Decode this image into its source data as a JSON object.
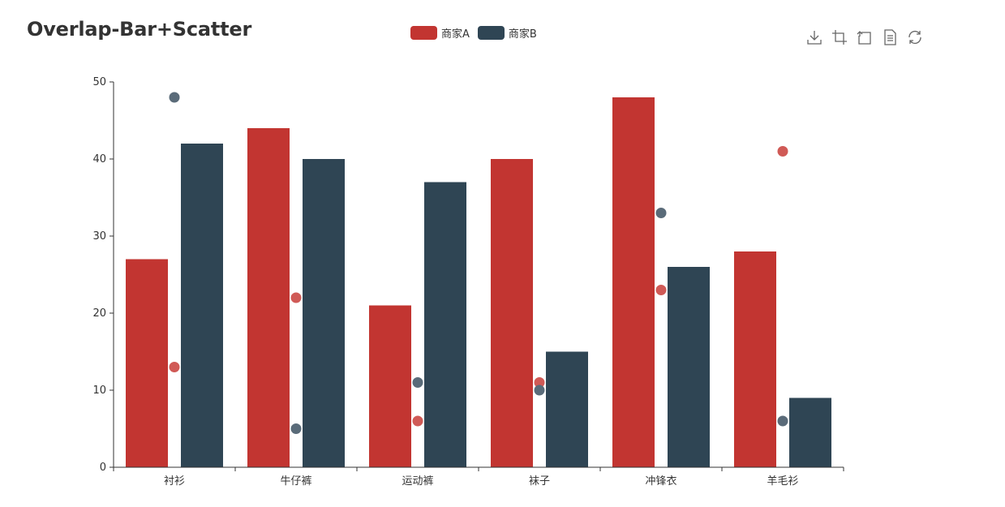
{
  "chart_data": {
    "title": "Overlap-Bar+Scatter",
    "type": "bar",
    "overlay_type": "scatter",
    "categories": [
      "衬衫",
      "牛仔裤",
      "运动裤",
      "袜子",
      "冲锋衣",
      "羊毛衫"
    ],
    "series": [
      {
        "name": "商家A",
        "color": "#c23531",
        "values": [
          27,
          44,
          21,
          40,
          48,
          28
        ]
      },
      {
        "name": "商家B",
        "color": "#2f4554",
        "values": [
          42,
          40,
          37,
          15,
          26,
          9
        ]
      }
    ],
    "scatter_series": [
      {
        "name": "商家A",
        "color": "#d05a56",
        "values": [
          13,
          22,
          6,
          11,
          23,
          41
        ]
      },
      {
        "name": "商家B",
        "color": "#5a6b79",
        "values": [
          48,
          5,
          11,
          10,
          33,
          6
        ]
      }
    ],
    "ylim": [
      0,
      50
    ],
    "yticks": [
      0,
      10,
      20,
      30,
      40,
      50
    ],
    "xlabel": "",
    "ylabel": "",
    "legend_position": "top-center",
    "grid": false
  },
  "toolbox": {
    "icons": [
      "download-icon",
      "zoom-icon",
      "zoom-reset-icon",
      "data-view-icon",
      "restore-icon"
    ]
  }
}
